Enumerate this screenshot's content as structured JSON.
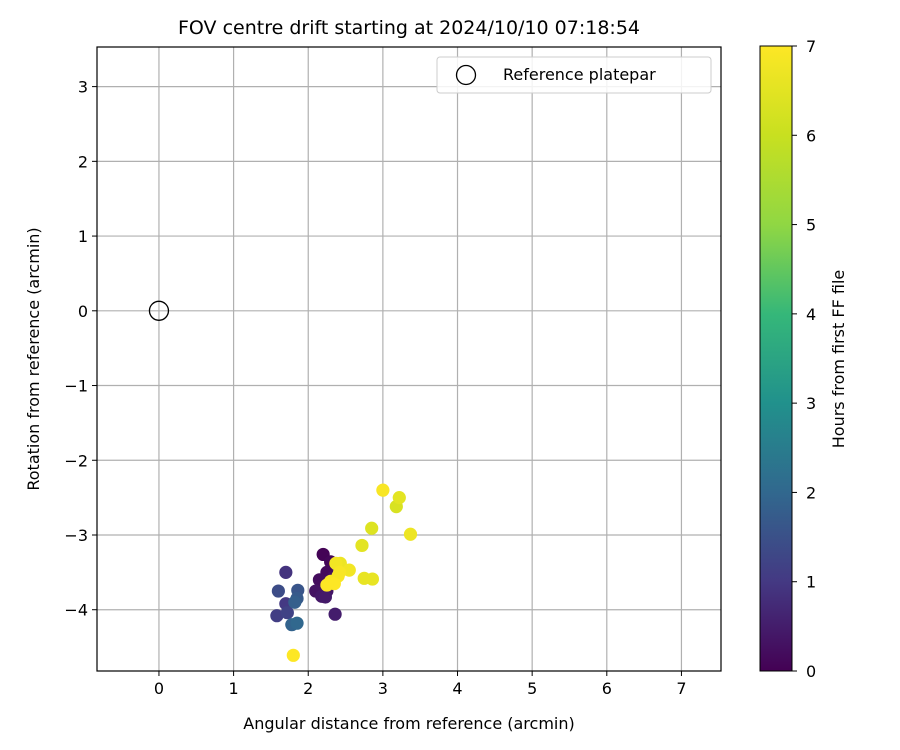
{
  "chart_data": {
    "type": "scatter",
    "title": "FOV centre drift starting at 2024/10/10 07:18:54",
    "xlabel": "Angular distance from reference (arcmin)",
    "ylabel": "Rotation from reference (arcmin)",
    "xlim": [
      -0.83,
      7.53
    ],
    "ylim": [
      -4.82,
      3.53
    ],
    "xticks": [
      0,
      1,
      2,
      3,
      4,
      5,
      6,
      7
    ],
    "yticks": [
      3,
      2,
      1,
      0,
      -1,
      -2,
      -3,
      -4
    ],
    "xtick_labels": [
      "0",
      "1",
      "2",
      "3",
      "4",
      "5",
      "6",
      "7"
    ],
    "ytick_labels": [
      "3",
      "2",
      "1",
      "0",
      "−1",
      "−2",
      "−3",
      "−4"
    ],
    "grid": true,
    "legend": {
      "position": "top-right",
      "entries": [
        "Reference platepar"
      ]
    },
    "colorbar": {
      "label": "Hours from first FF file",
      "min": 0,
      "max": 7,
      "ticks": [
        0,
        1,
        2,
        3,
        4,
        5,
        6,
        7
      ],
      "tick_labels": [
        "0",
        "1",
        "2",
        "3",
        "4",
        "5",
        "6",
        "7"
      ],
      "colormap": "viridis"
    },
    "reference_point": {
      "x": 0,
      "y": 0
    },
    "points": [
      {
        "x": 2.2,
        "y": -3.26,
        "c": 0.05
      },
      {
        "x": 2.3,
        "y": -3.36,
        "c": 0.1
      },
      {
        "x": 2.25,
        "y": -3.5,
        "c": 0.15
      },
      {
        "x": 2.15,
        "y": -3.6,
        "c": 0.2
      },
      {
        "x": 2.35,
        "y": -3.55,
        "c": 0.25
      },
      {
        "x": 2.1,
        "y": -3.75,
        "c": 0.3
      },
      {
        "x": 2.25,
        "y": -3.75,
        "c": 0.35
      },
      {
        "x": 2.18,
        "y": -3.82,
        "c": 0.4
      },
      {
        "x": 2.23,
        "y": -3.83,
        "c": 0.45
      },
      {
        "x": 2.36,
        "y": -4.06,
        "c": 0.5
      },
      {
        "x": 1.7,
        "y": -3.5,
        "c": 0.9
      },
      {
        "x": 1.7,
        "y": -3.92,
        "c": 1.0
      },
      {
        "x": 1.58,
        "y": -4.08,
        "c": 1.1
      },
      {
        "x": 1.72,
        "y": -4.04,
        "c": 1.2
      },
      {
        "x": 1.6,
        "y": -3.75,
        "c": 1.4
      },
      {
        "x": 1.86,
        "y": -3.74,
        "c": 1.6
      },
      {
        "x": 1.85,
        "y": -3.85,
        "c": 1.7
      },
      {
        "x": 1.82,
        "y": -3.9,
        "c": 1.8
      },
      {
        "x": 1.78,
        "y": -4.2,
        "c": 1.9
      },
      {
        "x": 1.85,
        "y": -4.18,
        "c": 2.0
      },
      {
        "x": 2.43,
        "y": -3.38,
        "c": 6.7
      },
      {
        "x": 2.55,
        "y": -3.47,
        "c": 6.8
      },
      {
        "x": 2.37,
        "y": -3.38,
        "c": 6.8
      },
      {
        "x": 2.4,
        "y": -3.55,
        "c": 6.9
      },
      {
        "x": 2.3,
        "y": -3.62,
        "c": 6.9
      },
      {
        "x": 2.35,
        "y": -3.65,
        "c": 7.0
      },
      {
        "x": 2.25,
        "y": -3.67,
        "c": 7.0
      },
      {
        "x": 2.42,
        "y": -3.5,
        "c": 6.9
      },
      {
        "x": 2.72,
        "y": -3.14,
        "c": 6.5
      },
      {
        "x": 2.75,
        "y": -3.58,
        "c": 6.6
      },
      {
        "x": 2.86,
        "y": -3.59,
        "c": 6.6
      },
      {
        "x": 2.85,
        "y": -2.91,
        "c": 6.4
      },
      {
        "x": 3.0,
        "y": -2.4,
        "c": 6.9
      },
      {
        "x": 3.18,
        "y": -2.62,
        "c": 6.3
      },
      {
        "x": 3.22,
        "y": -2.5,
        "c": 6.5
      },
      {
        "x": 3.37,
        "y": -2.99,
        "c": 6.7
      },
      {
        "x": 1.8,
        "y": -4.61,
        "c": 7.0
      }
    ]
  }
}
